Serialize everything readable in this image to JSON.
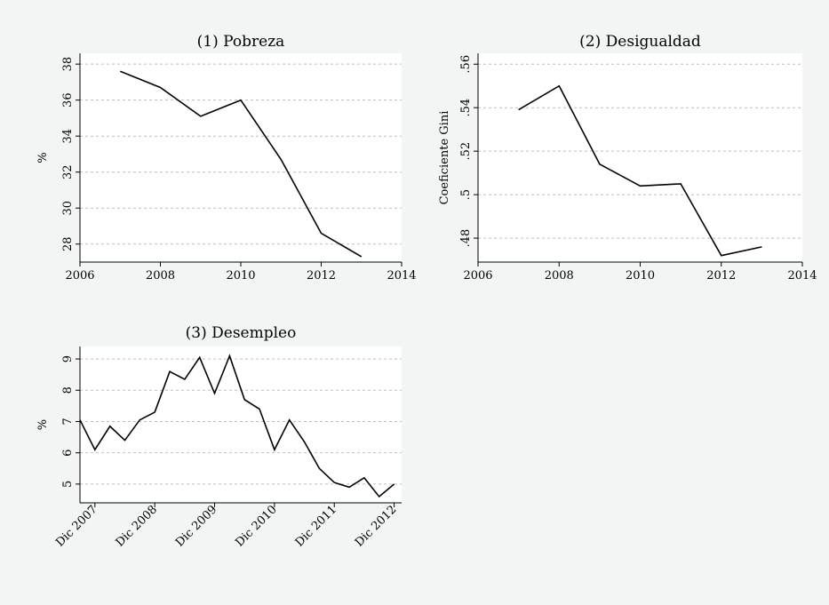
{
  "chart_data": [
    {
      "type": "line",
      "title": "(1) Pobreza",
      "xlabel": "",
      "ylabel": "%",
      "xlim": [
        2006,
        2014
      ],
      "ylim": [
        27,
        38.6
      ],
      "xticks": [
        2006,
        2008,
        2010,
        2012,
        2014
      ],
      "xtick_labels": [
        "2006",
        "2008",
        "2010",
        "2012",
        "2014"
      ],
      "yticks": [
        28,
        30,
        32,
        34,
        36,
        38
      ],
      "ytick_labels": [
        "28",
        "30",
        "32",
        "34",
        "36",
        "38"
      ],
      "grid": true,
      "x": [
        2007,
        2008,
        2009,
        2010,
        2011,
        2012,
        2013
      ],
      "series": [
        {
          "values": [
            37.6,
            36.7,
            35.1,
            36.0,
            32.7,
            28.6,
            27.3
          ]
        }
      ]
    },
    {
      "type": "line",
      "title": "(2) Desigualdad",
      "xlabel": "",
      "ylabel": "Coeficiente Gini",
      "xlim": [
        2006,
        2014
      ],
      "ylim": [
        0.469,
        0.565
      ],
      "xticks": [
        2006,
        2008,
        2010,
        2012,
        2014
      ],
      "xtick_labels": [
        "2006",
        "2008",
        "2010",
        "2012",
        "2014"
      ],
      "yticks": [
        0.48,
        0.5,
        0.52,
        0.54,
        0.56
      ],
      "ytick_labels": [
        ".48",
        ".5",
        ".52",
        ".54",
        ".56"
      ],
      "grid": true,
      "x": [
        2007,
        2008,
        2009,
        2010,
        2011,
        2012,
        2013
      ],
      "series": [
        {
          "values": [
            0.539,
            0.55,
            0.514,
            0.504,
            0.505,
            0.472,
            0.476
          ]
        }
      ]
    },
    {
      "type": "line",
      "title": "(3) Desempleo",
      "xlabel": "",
      "ylabel": "%",
      "xlim": [
        0,
        21.5
      ],
      "ylim": [
        4.4,
        9.4
      ],
      "xticks": [
        1,
        5,
        9,
        13,
        17,
        21
      ],
      "xtick_labels": [
        "Dic 2007",
        "Dic 2008",
        "Dic 2009",
        "Dic 2010",
        "Dic 2011",
        "Dic 2012"
      ],
      "yticks": [
        5,
        6,
        7,
        8,
        9
      ],
      "ytick_labels": [
        "5",
        "6",
        "7",
        "8",
        "9"
      ],
      "grid": true,
      "x": [
        0,
        1,
        2,
        3,
        4,
        5,
        6,
        7,
        8,
        9,
        10,
        11,
        12,
        13,
        14,
        15,
        16,
        17,
        18,
        19,
        20,
        21
      ],
      "series": [
        {
          "values": [
            7.05,
            6.1,
            6.85,
            6.4,
            7.05,
            7.3,
            8.6,
            8.35,
            9.05,
            7.9,
            9.1,
            7.7,
            7.4,
            6.1,
            7.05,
            6.35,
            5.5,
            5.05,
            4.9,
            5.2,
            4.6,
            5.0
          ]
        }
      ]
    }
  ]
}
